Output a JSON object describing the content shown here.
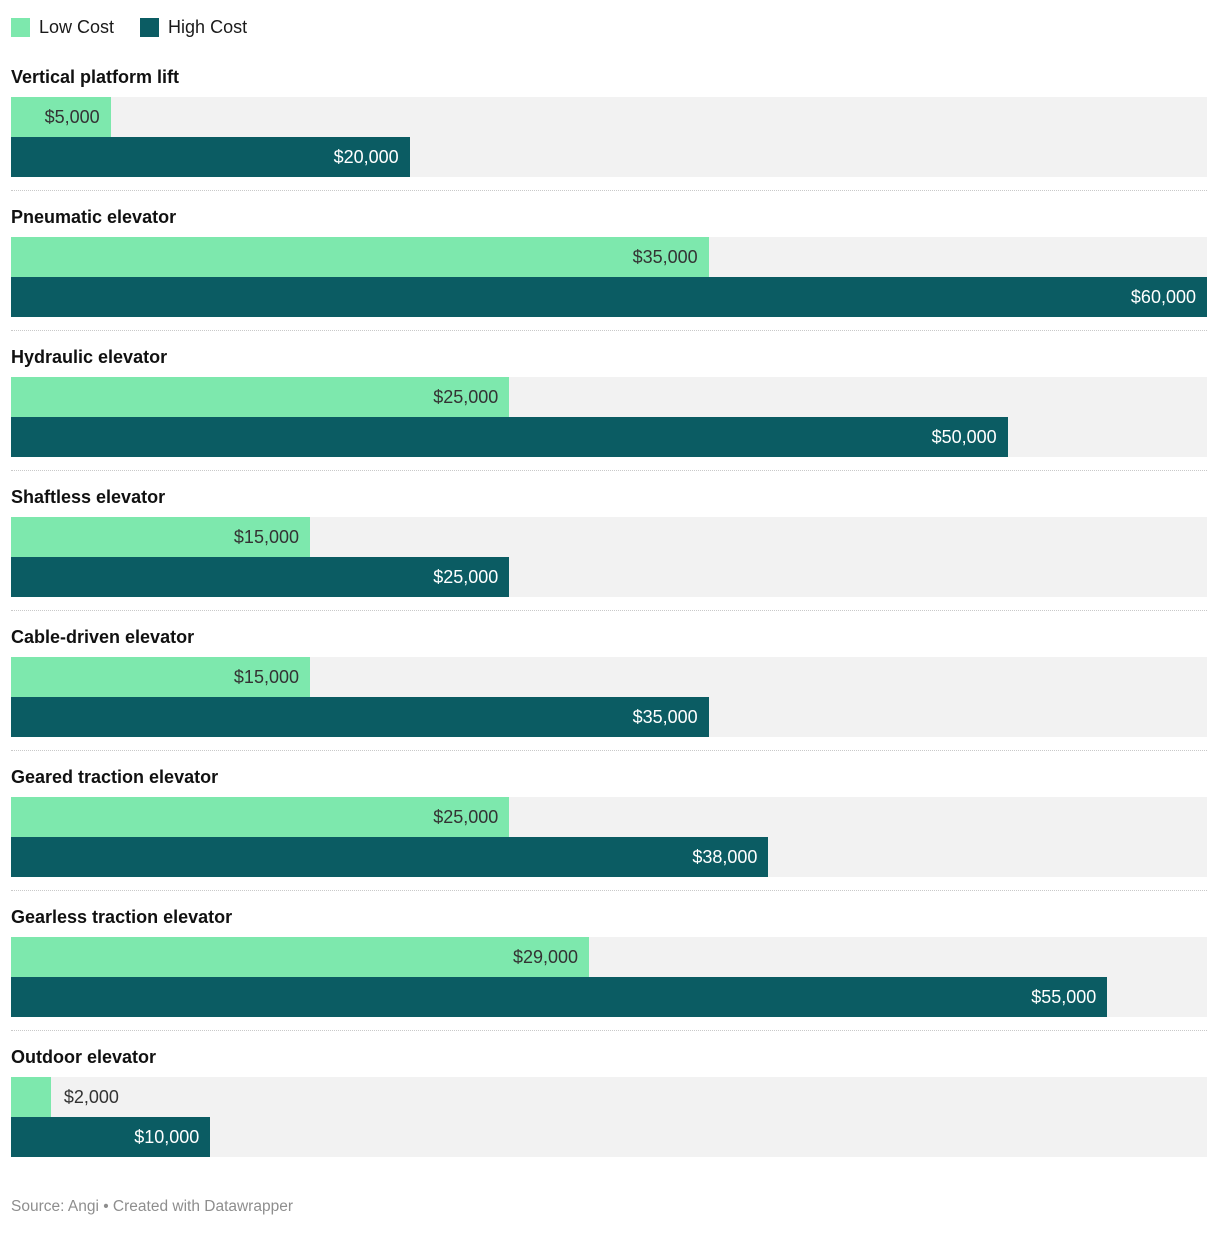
{
  "legend": {
    "low_label": "Low Cost",
    "high_label": "High Cost"
  },
  "colors": {
    "low": "#7de8ad",
    "high": "#0b5c63",
    "track": "#f2f2f2"
  },
  "footer": {
    "source_line": "Source: Angi • Created with Datawrapper"
  },
  "chart_data": {
    "type": "bar",
    "orientation": "horizontal",
    "grid": false,
    "legend_position": "top-left",
    "xlim": [
      0,
      60000
    ],
    "max_value": 60000,
    "categories": [
      "Vertical platform lift",
      "Pneumatic elevator",
      "Hydraulic elevator",
      "Shaftless elevator",
      "Cable-driven elevator",
      "Geared traction elevator",
      "Gearless traction elevator",
      "Outdoor elevator"
    ],
    "series": [
      {
        "name": "Low Cost",
        "values": [
          5000,
          35000,
          25000,
          15000,
          15000,
          25000,
          29000,
          2000
        ],
        "labels": [
          "$5,000",
          "$35,000",
          "$25,000",
          "$15,000",
          "$15,000",
          "$25,000",
          "$29,000",
          "$2,000"
        ]
      },
      {
        "name": "High Cost",
        "values": [
          20000,
          60000,
          50000,
          25000,
          35000,
          38000,
          55000,
          10000
        ],
        "labels": [
          "$20,000",
          "$60,000",
          "$50,000",
          "$25,000",
          "$35,000",
          "$38,000",
          "$55,000",
          "$10,000"
        ]
      }
    ]
  }
}
